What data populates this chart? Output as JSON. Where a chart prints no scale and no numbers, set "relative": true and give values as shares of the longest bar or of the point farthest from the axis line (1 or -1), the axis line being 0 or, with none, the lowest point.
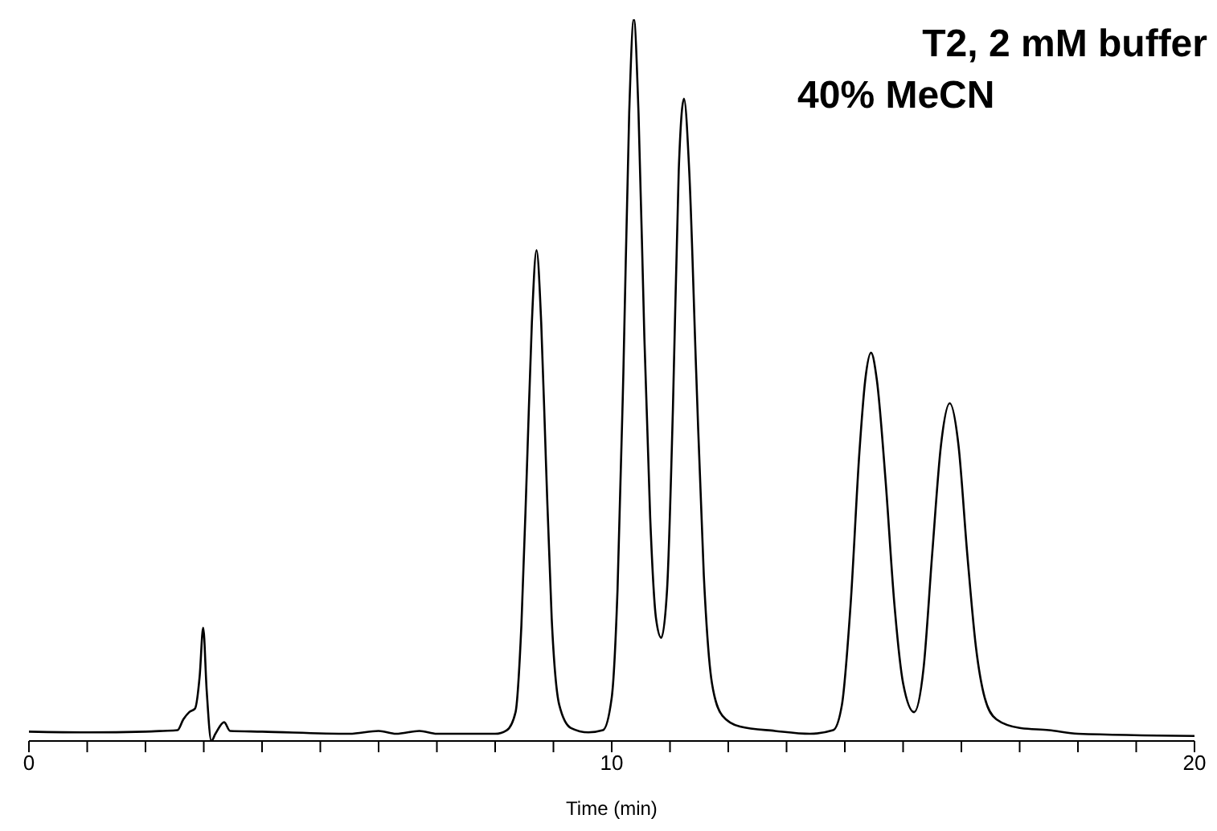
{
  "chart_data": {
    "type": "line",
    "relative": true,
    "title": "T2, 2 mM buffer",
    "subtitle": "40% MeCN",
    "xlabel": "Time (min)",
    "x": [
      0,
      1,
      2,
      2.3,
      2.55,
      2.65,
      2.75,
      2.85,
      2.93,
      2.99,
      3.05,
      3.13,
      3.2,
      3.35,
      3.45,
      4,
      5.5,
      6,
      6.3,
      6.7,
      7,
      8,
      8.2,
      8.35,
      8.45,
      8.55,
      8.63,
      8.71,
      8.79,
      8.87,
      8.97,
      9.1,
      9.3,
      9.6,
      9.85,
      10,
      10.1,
      10.2,
      10.3,
      10.38,
      10.46,
      10.56,
      10.66,
      10.76,
      10.85,
      10.95,
      11.05,
      11.15,
      11.24,
      11.33,
      11.45,
      11.58,
      11.72,
      11.9,
      12.2,
      12.8,
      13.4,
      13.8,
      13.95,
      14.1,
      14.25,
      14.35,
      14.45,
      14.55,
      14.7,
      14.85,
      15,
      15.19,
      15.35,
      15.5,
      15.65,
      15.8,
      15.95,
      16.1,
      16.25,
      16.4,
      16.6,
      17,
      17.5,
      18,
      20
    ],
    "series": [
      {
        "color": "#000000",
        "values": [
          0.013,
          0.012,
          0.013,
          0.014,
          0.015,
          0.03,
          0.04,
          0.045,
          0.09,
          0.157,
          0.07,
          0,
          0.01,
          0.026,
          0.014,
          0.013,
          0.01,
          0.014,
          0.01,
          0.014,
          0.01,
          0.01,
          0.015,
          0.04,
          0.16,
          0.39,
          0.58,
          0.68,
          0.58,
          0.39,
          0.17,
          0.05,
          0.018,
          0.012,
          0.015,
          0.06,
          0.21,
          0.51,
          0.87,
          1,
          0.87,
          0.56,
          0.31,
          0.17,
          0.143,
          0.21,
          0.46,
          0.79,
          0.89,
          0.79,
          0.51,
          0.23,
          0.08,
          0.035,
          0.02,
          0.014,
          0.01,
          0.015,
          0.05,
          0.19,
          0.4,
          0.5,
          0.538,
          0.5,
          0.36,
          0.19,
          0.08,
          0.04,
          0.1,
          0.26,
          0.41,
          0.468,
          0.41,
          0.26,
          0.13,
          0.06,
          0.03,
          0.018,
          0.015,
          0.01,
          0.007
        ]
      }
    ],
    "xlim": [
      0,
      20
    ],
    "xticks": [
      0,
      {
        "value": 1,
        "label": null
      },
      {
        "value": 2,
        "label": null
      },
      {
        "value": 3,
        "label": null
      },
      {
        "value": 4,
        "label": null
      },
      {
        "value": 5,
        "label": null
      },
      {
        "value": 6,
        "label": null
      },
      {
        "value": 7,
        "label": null
      },
      {
        "value": 8,
        "label": null
      },
      {
        "value": 9,
        "label": null
      },
      10,
      {
        "value": 11,
        "label": null
      },
      {
        "value": 12,
        "label": null
      },
      {
        "value": 13,
        "label": null
      },
      {
        "value": 14,
        "label": null
      },
      {
        "value": 15,
        "label": null
      },
      {
        "value": 16,
        "label": null
      },
      {
        "value": 17,
        "label": null
      },
      {
        "value": 18,
        "label": null
      },
      {
        "value": 19,
        "label": null
      },
      20
    ],
    "marker": "none",
    "line_style": "solid"
  }
}
